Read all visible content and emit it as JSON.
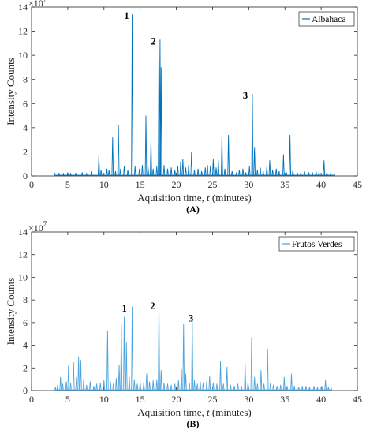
{
  "chart_data": [
    {
      "type": "line",
      "series": [
        {
          "name": "Albahaca",
          "color": "#0072BD",
          "peaks": [
            [
              3.2,
              0.2
            ],
            [
              3.8,
              0.25
            ],
            [
              4.4,
              0.2
            ],
            [
              5.0,
              0.3
            ],
            [
              5.4,
              0.2
            ],
            [
              6.1,
              0.25
            ],
            [
              7.0,
              0.3
            ],
            [
              7.6,
              0.2
            ],
            [
              8.3,
              0.4
            ],
            [
              9.3,
              1.7
            ],
            [
              9.6,
              0.5
            ],
            [
              10.4,
              0.6
            ],
            [
              10.7,
              0.5
            ],
            [
              11.2,
              3.2
            ],
            [
              11.6,
              0.4
            ],
            [
              12.0,
              4.2
            ],
            [
              12.3,
              0.6
            ],
            [
              12.8,
              0.8
            ],
            [
              13.3,
              0.5
            ],
            [
              13.9,
              13.4
            ],
            [
              14.3,
              0.8
            ],
            [
              14.9,
              0.6
            ],
            [
              15.3,
              0.9
            ],
            [
              15.8,
              5.0
            ],
            [
              16.1,
              0.7
            ],
            [
              16.5,
              3.0
            ],
            [
              16.8,
              0.6
            ],
            [
              17.3,
              0.8
            ],
            [
              17.6,
              10.9
            ],
            [
              17.75,
              11.3
            ],
            [
              17.9,
              9.0
            ],
            [
              18.3,
              0.9
            ],
            [
              18.8,
              0.6
            ],
            [
              19.3,
              0.7
            ],
            [
              19.8,
              0.5
            ],
            [
              20.2,
              0.8
            ],
            [
              20.6,
              1.2
            ],
            [
              20.9,
              1.4
            ],
            [
              21.3,
              0.7
            ],
            [
              21.7,
              0.9
            ],
            [
              22.1,
              2.0
            ],
            [
              22.5,
              0.5
            ],
            [
              23.0,
              0.6
            ],
            [
              23.5,
              0.4
            ],
            [
              24.0,
              0.7
            ],
            [
              24.3,
              0.9
            ],
            [
              24.7,
              0.8
            ],
            [
              25.1,
              1.4
            ],
            [
              25.5,
              0.7
            ],
            [
              25.8,
              1.3
            ],
            [
              26.3,
              3.3
            ],
            [
              26.7,
              0.6
            ],
            [
              27.2,
              3.4
            ],
            [
              27.7,
              0.4
            ],
            [
              28.3,
              0.3
            ],
            [
              28.7,
              0.5
            ],
            [
              29.2,
              0.6
            ],
            [
              29.6,
              0.3
            ],
            [
              30.1,
              0.8
            ],
            [
              30.5,
              6.8
            ],
            [
              30.8,
              2.4
            ],
            [
              31.2,
              0.5
            ],
            [
              31.6,
              0.7
            ],
            [
              32.0,
              0.4
            ],
            [
              32.5,
              0.8
            ],
            [
              32.9,
              1.3
            ],
            [
              33.3,
              0.5
            ],
            [
              33.8,
              0.6
            ],
            [
              34.2,
              0.4
            ],
            [
              34.8,
              1.8
            ],
            [
              35.2,
              0.3
            ],
            [
              35.7,
              3.4
            ],
            [
              36.1,
              0.5
            ],
            [
              36.7,
              0.3
            ],
            [
              37.2,
              0.3
            ],
            [
              37.7,
              0.4
            ],
            [
              38.3,
              0.3
            ],
            [
              38.8,
              0.3
            ],
            [
              39.3,
              0.4
            ],
            [
              39.7,
              0.3
            ],
            [
              40.4,
              1.3
            ],
            [
              40.8,
              0.3
            ],
            [
              41.3,
              0.2
            ],
            [
              41.8,
              0.2
            ]
          ]
        }
      ],
      "annotations": [
        {
          "text": "1",
          "x": 14.0,
          "y": 13.4
        },
        {
          "text": "2",
          "x": 17.7,
          "y": 11.3
        },
        {
          "text": "3",
          "x": 30.4,
          "y": 6.8
        }
      ],
      "xlabel_prefix": "Aquisition time,",
      "xlabel_var": "t",
      "xlabel_suffix": "(minutes)",
      "ylabel": "Intensity Counts",
      "y_exponent_base": "×10",
      "y_exponent": "7",
      "xlim": [
        0,
        45
      ],
      "ylim": [
        0,
        14
      ],
      "xticks": [
        0,
        5,
        10,
        15,
        20,
        25,
        30,
        35,
        40,
        45
      ],
      "yticks": [
        0,
        2,
        4,
        6,
        8,
        10,
        12,
        14
      ],
      "legend_position": "top-right",
      "grid": false,
      "caption": "(A)"
    },
    {
      "type": "line",
      "series": [
        {
          "name": "Frutos Verdes",
          "color": "#4DA3DD",
          "peaks": [
            [
              3.3,
              0.3
            ],
            [
              3.6,
              0.5
            ],
            [
              4.0,
              1.2
            ],
            [
              4.3,
              0.6
            ],
            [
              4.8,
              0.8
            ],
            [
              5.1,
              2.2
            ],
            [
              5.4,
              0.7
            ],
            [
              5.8,
              2.5
            ],
            [
              6.2,
              1.2
            ],
            [
              6.5,
              3.0
            ],
            [
              6.8,
              2.7
            ],
            [
              7.2,
              1.0
            ],
            [
              7.6,
              0.5
            ],
            [
              8.1,
              0.8
            ],
            [
              8.6,
              0.4
            ],
            [
              9.0,
              0.6
            ],
            [
              9.5,
              0.7
            ],
            [
              10.0,
              0.9
            ],
            [
              10.5,
              5.3
            ],
            [
              10.9,
              0.8
            ],
            [
              11.3,
              0.6
            ],
            [
              11.7,
              1.1
            ],
            [
              12.1,
              2.3
            ],
            [
              12.4,
              5.9
            ],
            [
              12.8,
              6.5
            ],
            [
              13.1,
              4.3
            ],
            [
              13.5,
              1.2
            ],
            [
              13.9,
              7.4
            ],
            [
              14.2,
              1.0
            ],
            [
              14.6,
              0.6
            ],
            [
              15.0,
              0.8
            ],
            [
              15.5,
              0.7
            ],
            [
              15.9,
              1.5
            ],
            [
              16.3,
              0.8
            ],
            [
              16.8,
              0.9
            ],
            [
              17.3,
              1.0
            ],
            [
              17.6,
              7.6
            ],
            [
              17.9,
              1.8
            ],
            [
              18.3,
              0.7
            ],
            [
              18.8,
              0.6
            ],
            [
              19.3,
              0.5
            ],
            [
              19.8,
              0.6
            ],
            [
              20.3,
              0.9
            ],
            [
              20.7,
              1.9
            ],
            [
              21.0,
              5.9
            ],
            [
              21.3,
              1.5
            ],
            [
              21.8,
              0.7
            ],
            [
              22.2,
              6.5
            ],
            [
              22.5,
              0.9
            ],
            [
              22.9,
              0.6
            ],
            [
              23.3,
              0.8
            ],
            [
              23.7,
              0.7
            ],
            [
              24.2,
              0.8
            ],
            [
              24.6,
              1.3
            ],
            [
              25.1,
              0.7
            ],
            [
              25.6,
              0.6
            ],
            [
              26.1,
              2.6
            ],
            [
              26.5,
              0.6
            ],
            [
              27.0,
              2.1
            ],
            [
              27.5,
              0.5
            ],
            [
              28.0,
              0.4
            ],
            [
              28.5,
              0.6
            ],
            [
              29.0,
              0.4
            ],
            [
              29.5,
              2.4
            ],
            [
              29.9,
              0.8
            ],
            [
              30.4,
              4.7
            ],
            [
              30.8,
              1.2
            ],
            [
              31.2,
              0.6
            ],
            [
              31.7,
              1.8
            ],
            [
              32.1,
              0.6
            ],
            [
              32.6,
              3.7
            ],
            [
              33.0,
              0.7
            ],
            [
              33.4,
              0.5
            ],
            [
              33.9,
              0.4
            ],
            [
              34.4,
              0.5
            ],
            [
              34.9,
              1.2
            ],
            [
              35.3,
              0.4
            ],
            [
              35.9,
              1.5
            ],
            [
              36.3,
              0.4
            ],
            [
              36.9,
              0.3
            ],
            [
              37.4,
              0.4
            ],
            [
              37.9,
              0.4
            ],
            [
              38.4,
              0.3
            ],
            [
              39.0,
              0.4
            ],
            [
              39.5,
              0.3
            ],
            [
              40.1,
              0.4
            ],
            [
              40.6,
              0.9
            ],
            [
              41.0,
              0.3
            ],
            [
              41.4,
              0.2
            ]
          ]
        }
      ],
      "annotations": [
        {
          "text": "1",
          "x": 13.7,
          "y": 7.4
        },
        {
          "text": "2",
          "x": 17.6,
          "y": 7.6
        },
        {
          "text": "3",
          "x": 22.9,
          "y": 6.5
        }
      ],
      "xlabel_prefix": "Aquisition time,",
      "xlabel_var": "t",
      "xlabel_suffix": "(minutes)",
      "ylabel": "Intensity Counts",
      "y_exponent_base": "×10",
      "y_exponent": "7",
      "xlim": [
        0,
        45
      ],
      "ylim": [
        0,
        14
      ],
      "xticks": [
        0,
        5,
        10,
        15,
        20,
        25,
        30,
        35,
        40,
        45
      ],
      "yticks": [
        0,
        2,
        4,
        6,
        8,
        10,
        12,
        14
      ],
      "legend_position": "top-right",
      "grid": false,
      "caption": "(B)"
    }
  ]
}
